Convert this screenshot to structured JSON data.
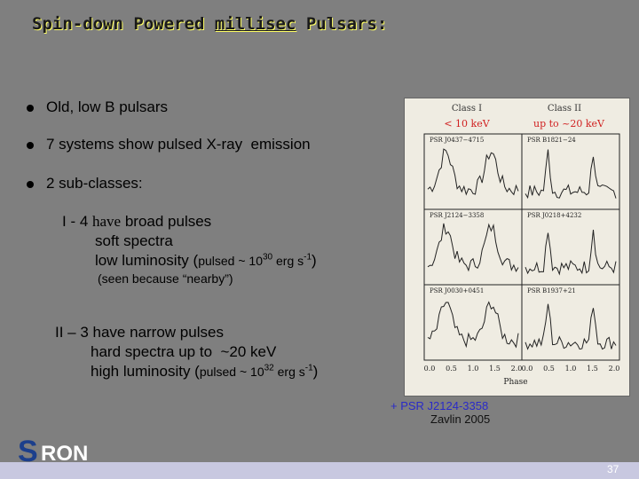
{
  "slide": {
    "title": {
      "before": "Spin-down Powered ",
      "underlined": "millisec",
      "after": " Pulsars:"
    },
    "bullets": [
      "Old, low B pulsars",
      "7 systems show pulsed X-ray  emission",
      "2 sub-classes:"
    ],
    "class1": {
      "line1": {
        "numeral": "I - 4 ",
        "have": "have",
        "rest": " broad pulses"
      },
      "line2": "soft spectra",
      "line3": {
        "text": "low luminosity (",
        "small": "pulsed ~ 10",
        "exp": "30",
        "unit": " erg s",
        "unit_exp": "-1",
        "close": ")"
      },
      "note": "(seen because “nearby”)"
    },
    "class2": {
      "line1": "II – 3 have narrow pulses",
      "line2": "hard spectra up to  ~20 keV",
      "line3": {
        "text": "high luminosity (",
        "small": "pulsed ~ 10",
        "exp": "32",
        "unit": " erg s",
        "unit_exp": "-1",
        "close": ")"
      }
    },
    "figure": {
      "headers": [
        "Class  I",
        "Class  II"
      ],
      "bands": [
        "< 10 keV",
        "up to ~20 keV"
      ],
      "panels": [
        "PSR J0437−4715",
        "PSR B1821−24",
        "PSR J2124−3358",
        "PSR J0218+4232",
        "PSR J0030+0451",
        "PSR B1937+21"
      ],
      "xticks": [
        "0.0",
        "0.5",
        "1.0",
        "1.5",
        "2.0"
      ],
      "xlabel": "Phase"
    },
    "caption": [
      "+ PSR J2124-3358",
      "Zavlin 2005"
    ],
    "logo": "RON",
    "page": "37"
  }
}
